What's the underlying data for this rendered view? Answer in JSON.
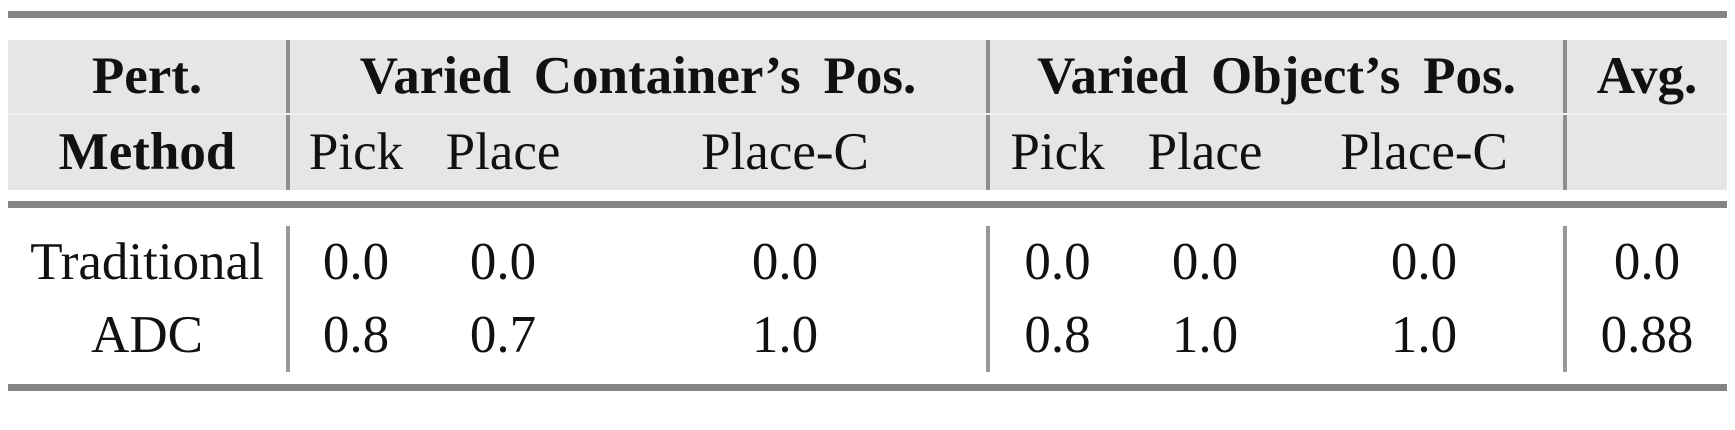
{
  "table": {
    "col1": {
      "line1": "Pert.",
      "line2": "Method"
    },
    "groups": [
      {
        "label": "Varied Container’s Pos.",
        "subcols": [
          "Pick",
          "Place",
          "Place-C"
        ]
      },
      {
        "label": "Varied Object’s Pos.",
        "subcols": [
          "Pick",
          "Place",
          "Place-C"
        ]
      }
    ],
    "avg_header": "Avg.",
    "rows": [
      {
        "method": "Traditional",
        "values": [
          "0.0",
          "0.0",
          "0.0",
          "0.0",
          "0.0",
          "0.0"
        ],
        "avg": "0.0"
      },
      {
        "method": "ADC",
        "values": [
          "0.8",
          "0.7",
          "1.0",
          "0.8",
          "1.0",
          "1.0"
        ],
        "avg": "0.88"
      }
    ]
  },
  "chart_data": {
    "type": "table",
    "column_groups": [
      "Varied Container’s Pos.",
      "Varied Object’s Pos."
    ],
    "columns": [
      "Pert. Method",
      "Pick",
      "Place",
      "Place-C",
      "Pick",
      "Place",
      "Place-C",
      "Avg."
    ],
    "rows": [
      [
        "Traditional",
        0.0,
        0.0,
        0.0,
        0.0,
        0.0,
        0.0,
        0.0
      ],
      [
        "ADC",
        0.8,
        0.7,
        1.0,
        0.8,
        1.0,
        1.0,
        0.88
      ]
    ]
  },
  "colors": {
    "header_background": "#e6e6e6",
    "header_row_separator": "#f1f1f1",
    "horizontal_rule": "#848484",
    "vertical_divider": "#8d8d8d",
    "text": "#111111",
    "page_background": "#ffffff"
  }
}
